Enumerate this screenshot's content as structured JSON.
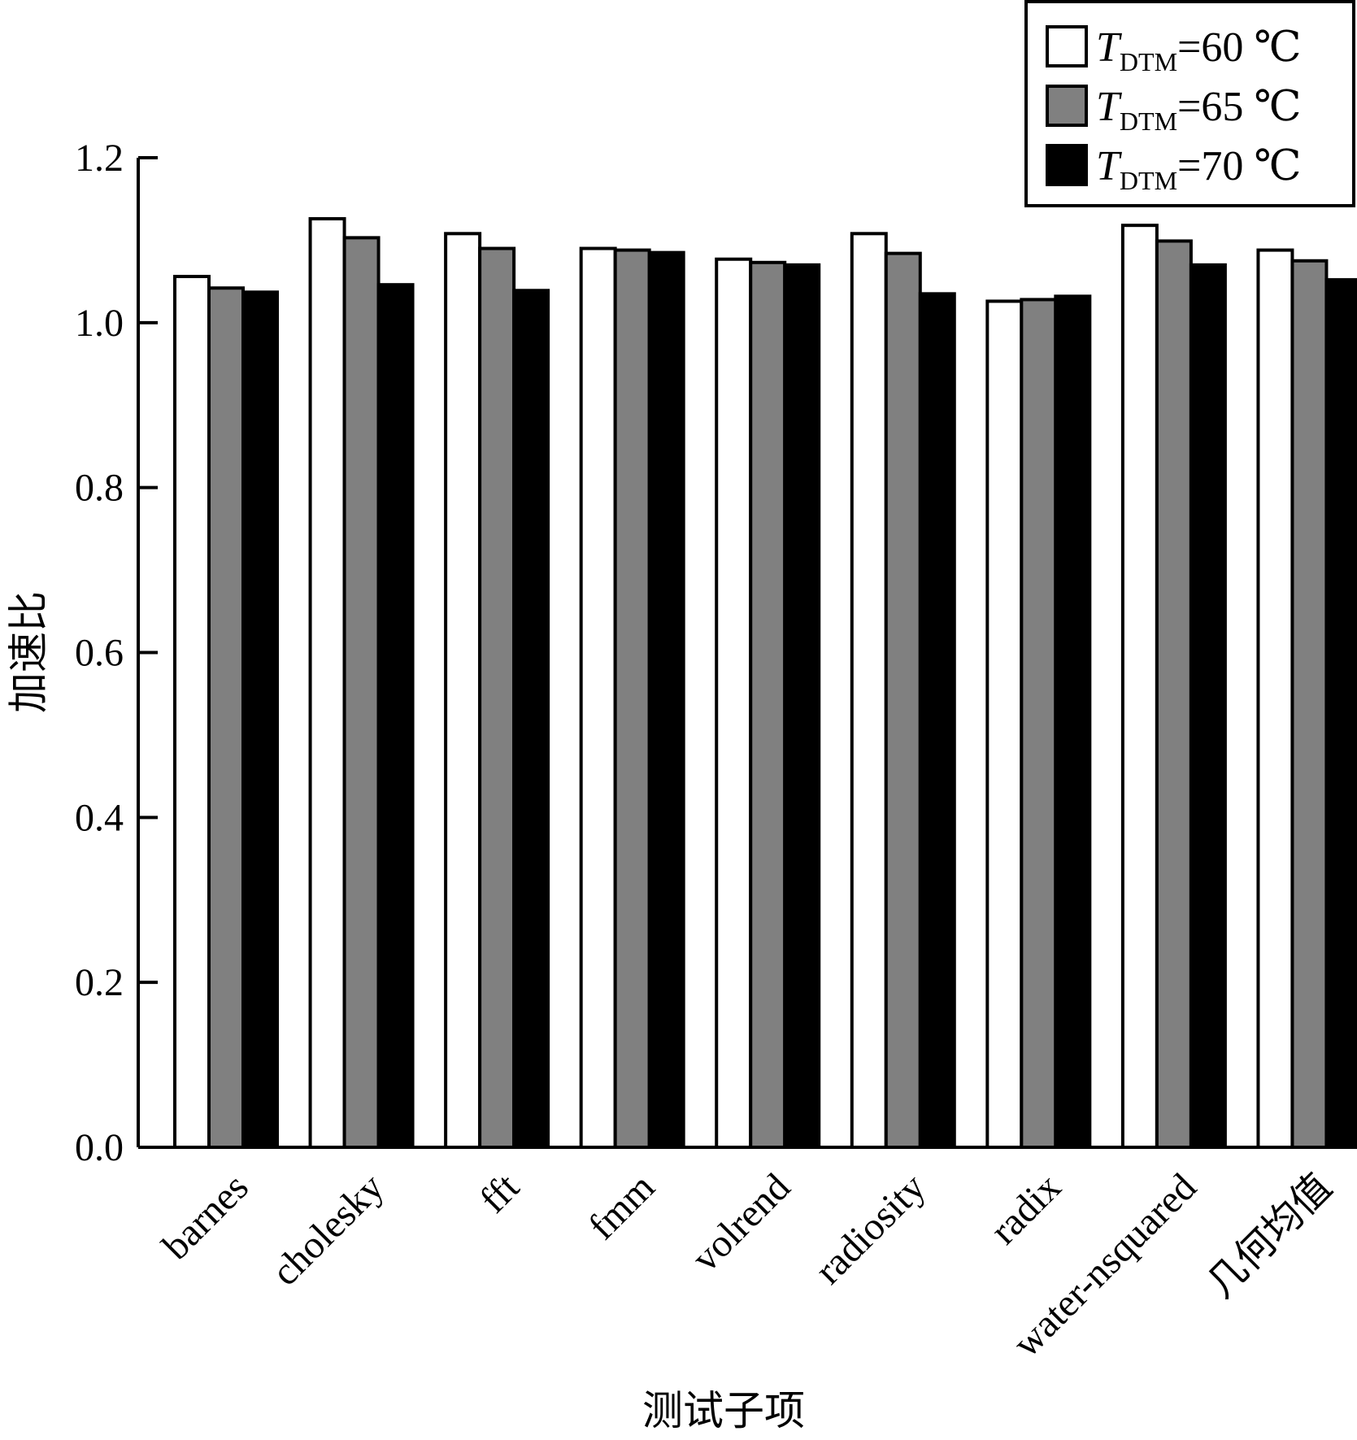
{
  "chart_data": {
    "type": "bar",
    "title": "",
    "xlabel": "测试子项",
    "ylabel": "加速比",
    "ylim": [
      0.0,
      1.2
    ],
    "yticks": [
      "0.0",
      "0.2",
      "0.4",
      "0.6",
      "0.8",
      "1.0",
      "1.2"
    ],
    "categories": [
      "barnes",
      "cholesky",
      "fft",
      "fmm",
      "volrend",
      "radiosity",
      "radix",
      "water-nsquared",
      "几何均值"
    ],
    "series": [
      {
        "name": "T_DTM=60 ℃",
        "legend_main": "T",
        "legend_sub": "DTM",
        "legend_rest": "=60 ℃",
        "color": "#ffffff",
        "values": [
          1.056,
          1.126,
          1.108,
          1.09,
          1.077,
          1.108,
          1.026,
          1.118,
          1.088
        ]
      },
      {
        "name": "T_DTM=65 ℃",
        "legend_main": "T",
        "legend_sub": "DTM",
        "legend_rest": "=65 ℃",
        "color": "#808080",
        "values": [
          1.042,
          1.103,
          1.09,
          1.088,
          1.073,
          1.084,
          1.028,
          1.099,
          1.075
        ]
      },
      {
        "name": "T_DTM=70 ℃",
        "legend_main": "T",
        "legend_sub": "DTM",
        "legend_rest": "=70 ℃",
        "color": "#000000",
        "values": [
          1.037,
          1.046,
          1.039,
          1.085,
          1.07,
          1.035,
          1.032,
          1.07,
          1.052
        ]
      }
    ],
    "grid": false,
    "legend_position": "top-right"
  }
}
